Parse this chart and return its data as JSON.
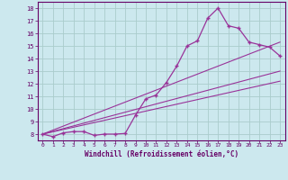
{
  "xlabel": "Windchill (Refroidissement éolien,°C)",
  "bg_color": "#cce8ee",
  "grid_color": "#aacccc",
  "line_color": "#993399",
  "xlim": [
    -0.5,
    23.5
  ],
  "ylim": [
    7.5,
    18.5
  ],
  "xticks": [
    0,
    1,
    2,
    3,
    4,
    5,
    6,
    7,
    8,
    9,
    10,
    11,
    12,
    13,
    14,
    15,
    16,
    17,
    18,
    19,
    20,
    21,
    22,
    23
  ],
  "yticks": [
    8,
    9,
    10,
    11,
    12,
    13,
    14,
    15,
    16,
    17,
    18
  ],
  "curve1_x": [
    0,
    1,
    2,
    3,
    4,
    5,
    6,
    7,
    8,
    9,
    10,
    11,
    12,
    13,
    14,
    15,
    16,
    17,
    18,
    19,
    20,
    21,
    22,
    23
  ],
  "curve1_y": [
    8.0,
    7.8,
    8.1,
    8.2,
    8.2,
    7.9,
    8.0,
    8.0,
    8.05,
    9.5,
    10.8,
    11.1,
    12.1,
    13.4,
    15.0,
    15.4,
    17.2,
    18.0,
    16.6,
    16.4,
    15.3,
    15.1,
    14.9,
    14.2
  ],
  "line1_x": [
    0,
    23
  ],
  "line1_y": [
    8.0,
    13.0
  ],
  "line2_x": [
    0,
    23
  ],
  "line2_y": [
    8.0,
    12.2
  ],
  "line3_x": [
    0,
    23
  ],
  "line3_y": [
    8.0,
    15.3
  ]
}
